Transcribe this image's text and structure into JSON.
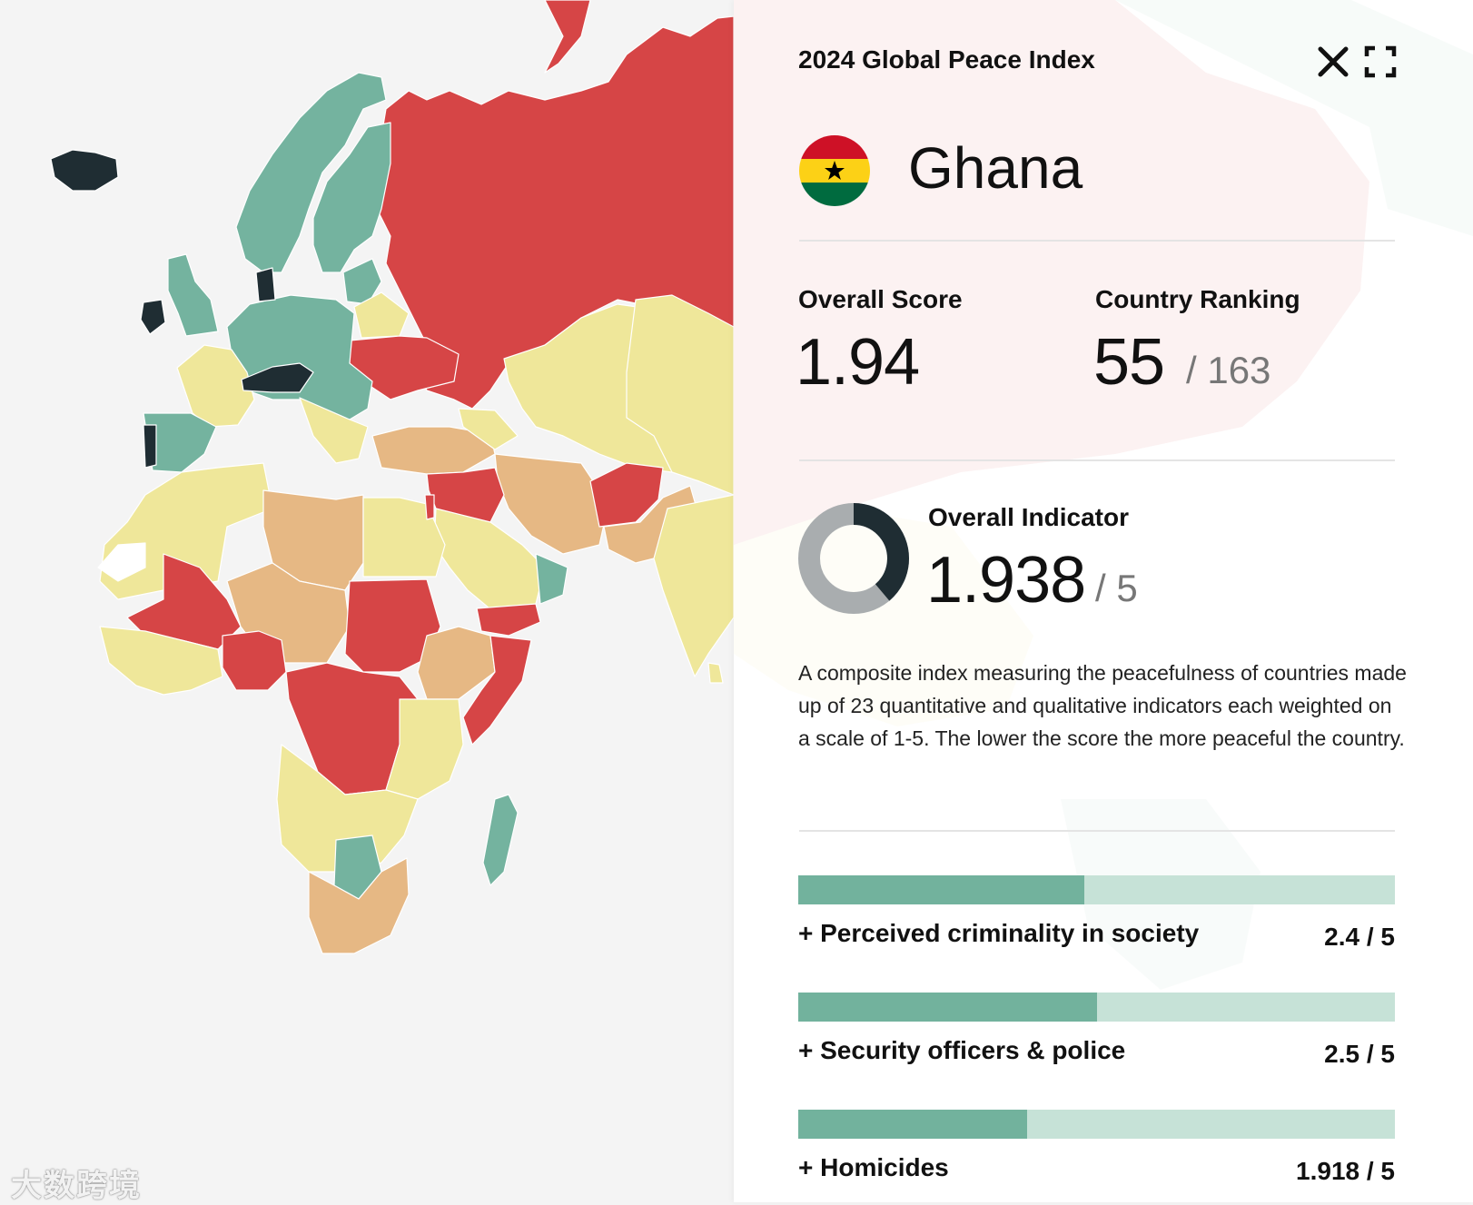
{
  "colors": {
    "very_high": "#1f2d33",
    "high": "#74b39f",
    "medium": "#efe79a",
    "low": "#e6b884",
    "very_low": "#d64546",
    "no_data": "#ffffff",
    "bar_fill": "#72b29d",
    "bar_track": "#c6e2d7"
  },
  "panel": {
    "title": "2024 Global Peace Index",
    "country": "Ghana",
    "flag": "ghana-flag-icon",
    "overall_score": {
      "label": "Overall Score",
      "value": "1.94"
    },
    "ranking": {
      "label": "Country Ranking",
      "value": "55",
      "total": "/ 163",
      "rank": 55,
      "count": 163
    },
    "indicator": {
      "label": "Overall Indicator",
      "value": "1.938",
      "max": "/ 5",
      "fraction": 0.3876
    },
    "description": "A composite index measuring the peacefulness of countries made up of 23 quantitative and qualitative indicators each weighted on a scale of 1-5. The lower the score the more peaceful the country.",
    "indicators": [
      {
        "label": "+ Perceived criminality in society",
        "value": "2.4 / 5",
        "fraction": 0.48
      },
      {
        "label": "+ Security officers & police",
        "value": "2.5 / 5",
        "fraction": 0.5
      },
      {
        "label": "+ Homicides",
        "value": "1.918 / 5",
        "fraction": 0.384
      }
    ]
  },
  "watermark": "大数跨境"
}
